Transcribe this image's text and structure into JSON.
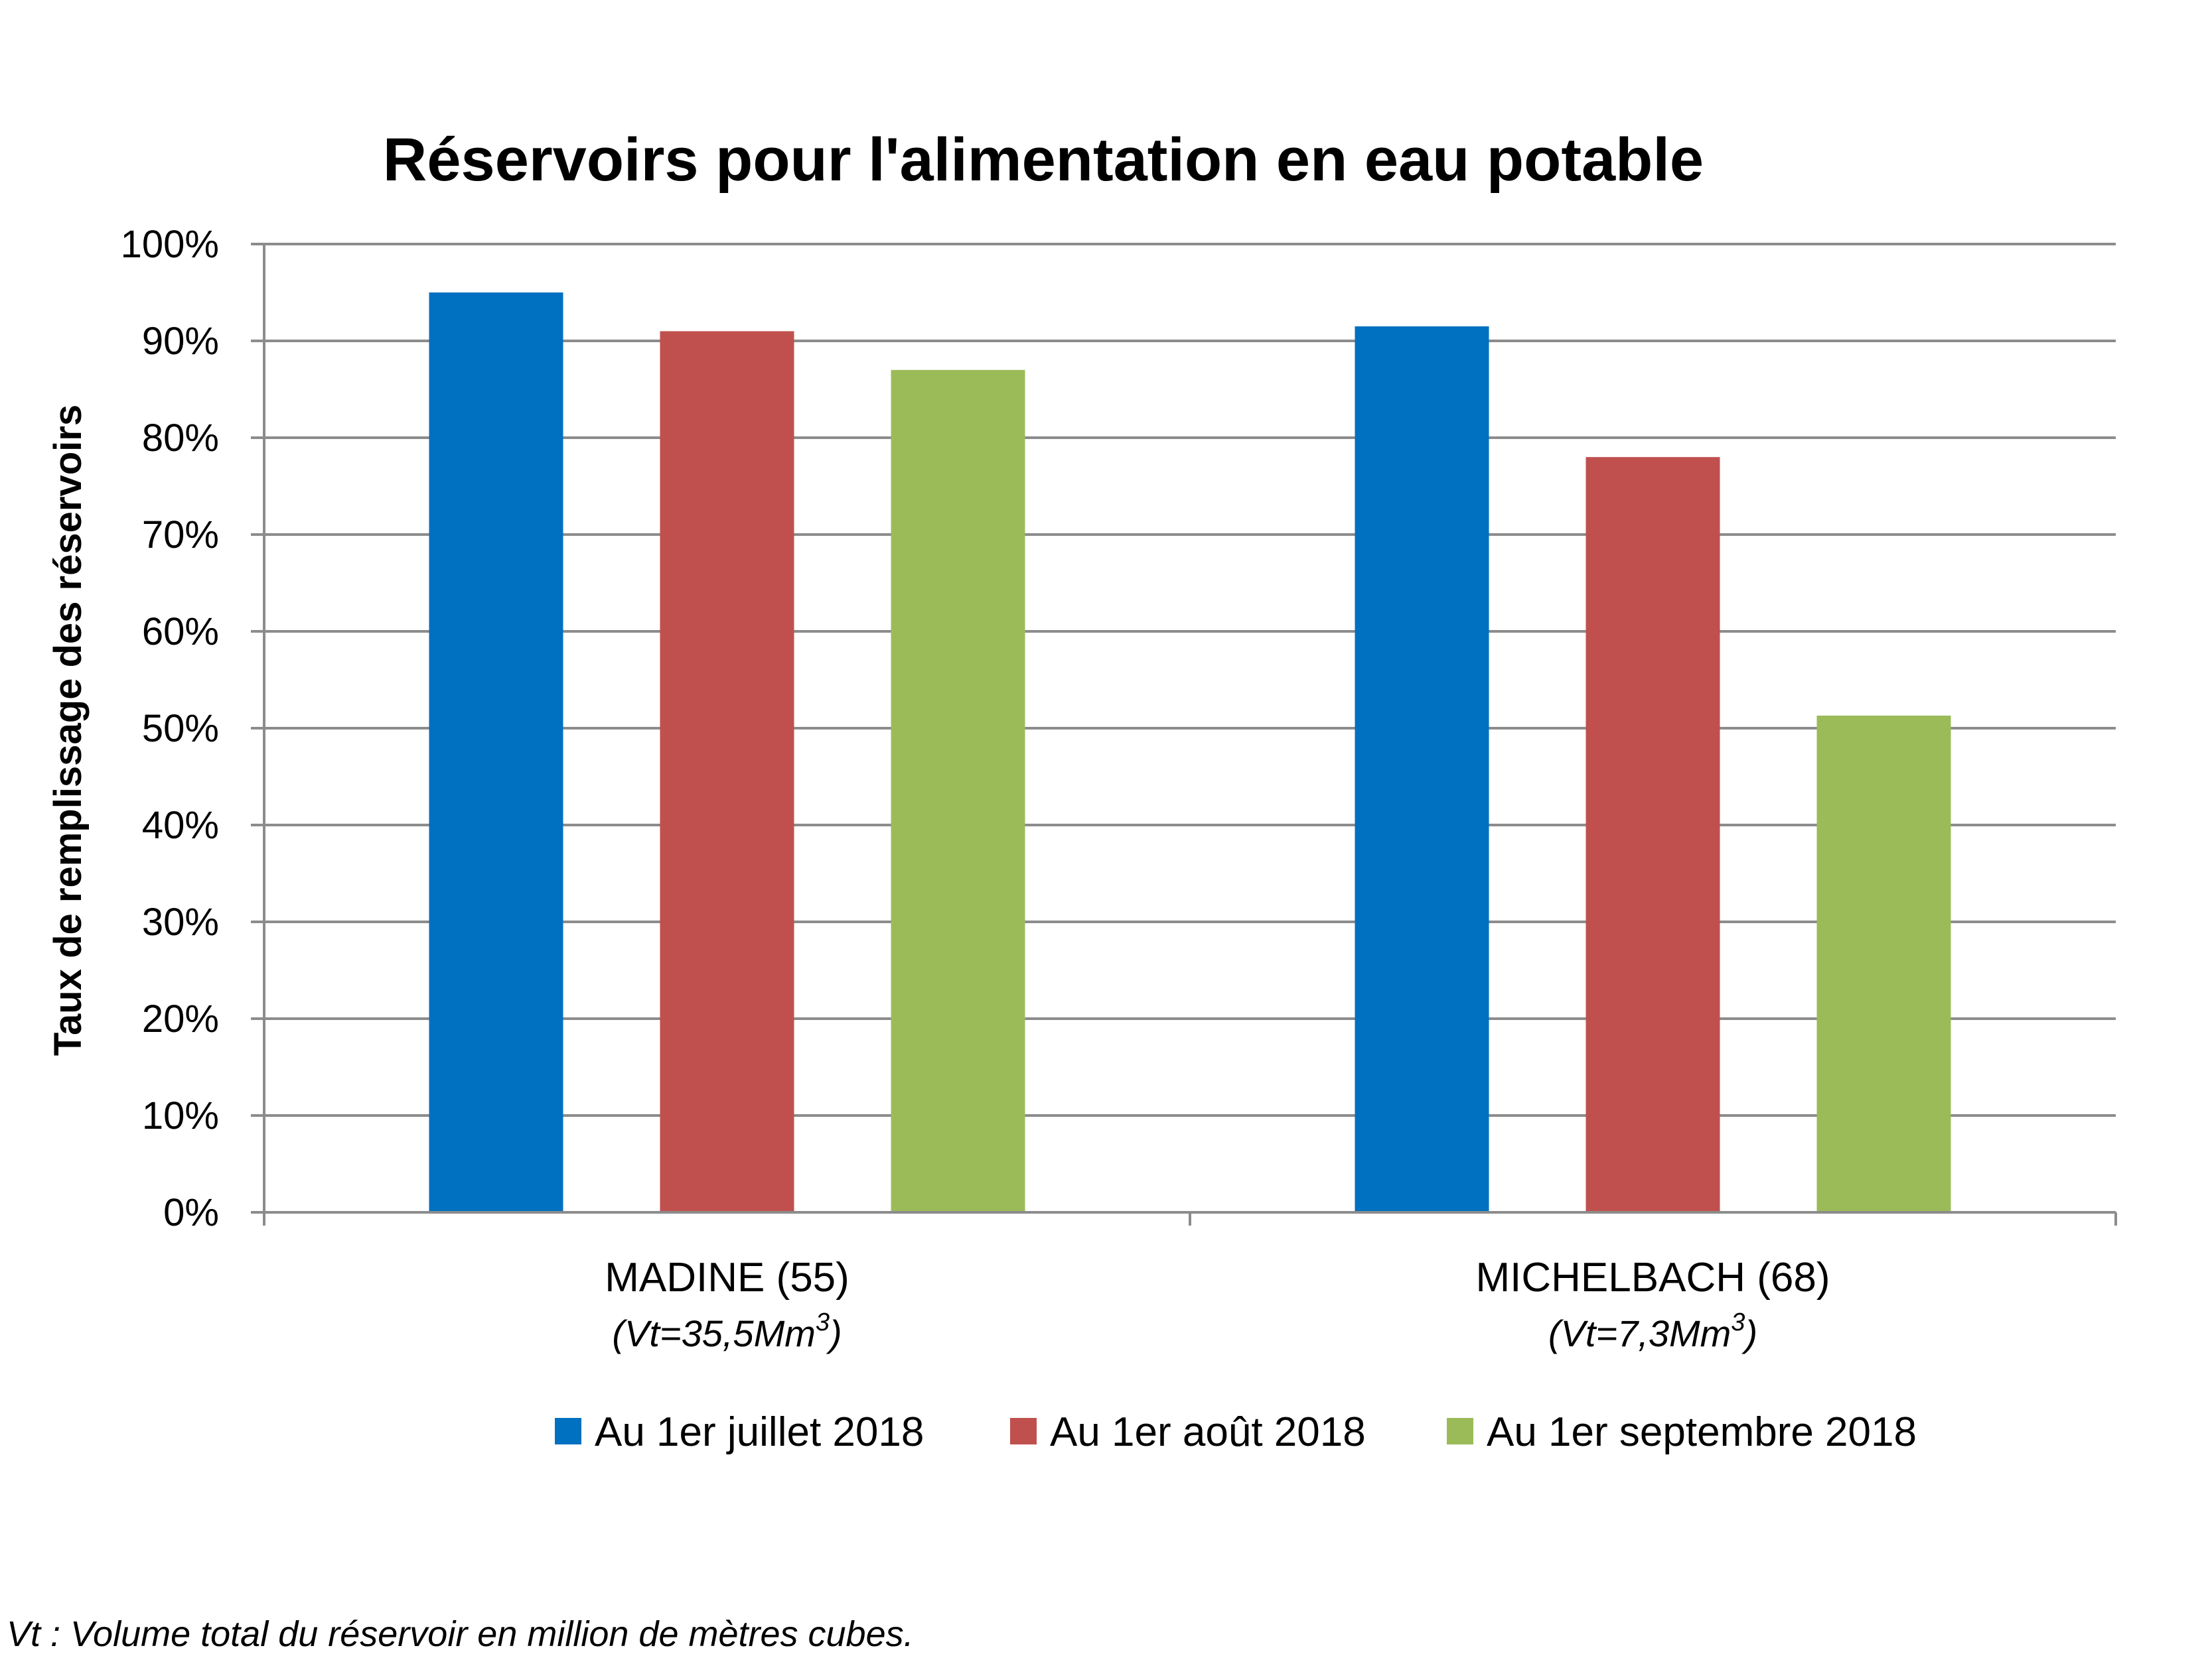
{
  "chart_data": {
    "type": "bar",
    "title": "Réservoirs pour l'alimentation en eau potable",
    "ylabel": "Taux de remplissage des réservoirs",
    "xlabel": "",
    "ylim": [
      0,
      100
    ],
    "yticks": [
      "0%",
      "10%",
      "20%",
      "30%",
      "40%",
      "50%",
      "60%",
      "70%",
      "80%",
      "90%",
      "100%"
    ],
    "grid": true,
    "legend_position": "bottom",
    "categories": [
      {
        "name": "MADINE (55)",
        "sub_prefix": "(Vt=35,5Mm",
        "sub_sup": "3",
        "sub_suffix": ")"
      },
      {
        "name": "MICHELBACH (68)",
        "sub_prefix": "(Vt=7,3Mm",
        "sub_sup": "3",
        "sub_suffix": ")"
      }
    ],
    "series": [
      {
        "name": "Au 1er juillet 2018",
        "color": "#0070C0",
        "values": [
          95,
          91.5
        ]
      },
      {
        "name": "Au 1er août 2018",
        "color": "#C0504D",
        "values": [
          91,
          78
        ]
      },
      {
        "name": "Au 1er septembre 2018",
        "color": "#9BBB59",
        "values": [
          87,
          51.3
        ]
      }
    ]
  },
  "footnote": "Vt : Volume total du réservoir en million de mètres cubes."
}
